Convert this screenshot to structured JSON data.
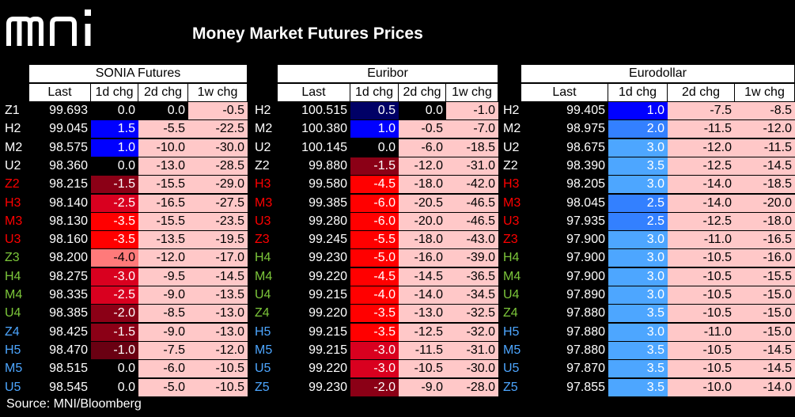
{
  "header": {
    "logo_text": "mni",
    "title": "Money Market Futures Prices"
  },
  "colors": {
    "header_bg": "#ffffff",
    "pink": "#ffc8c8",
    "brown_dark": "#8b0016",
    "red": "#ff0000",
    "blue": "#0000ff",
    "light_blue": "#4da6ff",
    "text_green": "#7cc63a",
    "text_red": "#ff0000",
    "text_blue": "#4da6ff"
  },
  "panels": [
    {
      "name": "SONIA Futures",
      "columns": [
        "Last",
        "1d chg",
        "2d chg",
        "1w chg"
      ],
      "rows": [
        {
          "contract": "Z1",
          "color": "white",
          "last": "99.693",
          "d1": "0.0",
          "d2": "0.0",
          "w1": "-0.5"
        },
        {
          "contract": "H2",
          "color": "white",
          "last": "99.045",
          "d1": "1.5",
          "d2": "-5.5",
          "w1": "-22.5"
        },
        {
          "contract": "M2",
          "color": "white",
          "last": "98.575",
          "d1": "1.0",
          "d2": "-10.0",
          "w1": "-30.0"
        },
        {
          "contract": "U2",
          "color": "white",
          "last": "98.360",
          "d1": "0.0",
          "d2": "-13.0",
          "w1": "-28.5"
        },
        {
          "contract": "Z2",
          "color": "red",
          "last": "98.215",
          "d1": "-1.5",
          "d2": "-15.5",
          "w1": "-29.0"
        },
        {
          "contract": "H3",
          "color": "red",
          "last": "98.140",
          "d1": "-2.5",
          "d2": "-16.5",
          "w1": "-27.5"
        },
        {
          "contract": "M3",
          "color": "red",
          "last": "98.130",
          "d1": "-3.5",
          "d2": "-15.5",
          "w1": "-23.5"
        },
        {
          "contract": "U3",
          "color": "red",
          "last": "98.160",
          "d1": "-3.5",
          "d2": "-13.5",
          "w1": "-19.5"
        },
        {
          "contract": "Z3",
          "color": "green",
          "last": "98.200",
          "d1": "-4.0",
          "d2": "-12.0",
          "w1": "-17.0"
        },
        {
          "contract": "H4",
          "color": "green",
          "last": "98.275",
          "d1": "-3.0",
          "d2": "-9.5",
          "w1": "-14.5"
        },
        {
          "contract": "M4",
          "color": "green",
          "last": "98.335",
          "d1": "-2.5",
          "d2": "-9.0",
          "w1": "-13.5"
        },
        {
          "contract": "U4",
          "color": "green",
          "last": "98.385",
          "d1": "-2.0",
          "d2": "-8.5",
          "w1": "-13.0"
        },
        {
          "contract": "Z4",
          "color": "blue",
          "last": "98.425",
          "d1": "-1.5",
          "d2": "-9.0",
          "w1": "-13.0"
        },
        {
          "contract": "H5",
          "color": "blue",
          "last": "98.470",
          "d1": "-1.0",
          "d2": "-7.5",
          "w1": "-12.0"
        },
        {
          "contract": "M5",
          "color": "blue",
          "last": "98.515",
          "d1": "0.0",
          "d2": "-6.0",
          "w1": "-10.5"
        },
        {
          "contract": "U5",
          "color": "blue",
          "last": "98.545",
          "d1": "0.0",
          "d2": "-5.0",
          "w1": "-10.5"
        }
      ]
    },
    {
      "name": "Euribor",
      "columns": [
        "Last",
        "1d chg",
        "2d chg",
        "1w chg"
      ],
      "rows": [
        {
          "contract": "H2",
          "color": "white",
          "last": "100.515",
          "d1": "0.5",
          "d2": "0.0",
          "w1": "-1.0"
        },
        {
          "contract": "M2",
          "color": "white",
          "last": "100.380",
          "d1": "1.0",
          "d2": "-0.5",
          "w1": "-7.0"
        },
        {
          "contract": "U2",
          "color": "white",
          "last": "100.145",
          "d1": "0.0",
          "d2": "-6.0",
          "w1": "-18.5"
        },
        {
          "contract": "Z2",
          "color": "white",
          "last": "99.880",
          "d1": "-1.5",
          "d2": "-12.0",
          "w1": "-31.0"
        },
        {
          "contract": "H3",
          "color": "red",
          "last": "99.580",
          "d1": "-4.5",
          "d2": "-18.0",
          "w1": "-42.0"
        },
        {
          "contract": "M3",
          "color": "red",
          "last": "99.385",
          "d1": "-6.0",
          "d2": "-20.5",
          "w1": "-46.5"
        },
        {
          "contract": "U3",
          "color": "red",
          "last": "99.280",
          "d1": "-6.0",
          "d2": "-20.0",
          "w1": "-46.5"
        },
        {
          "contract": "Z3",
          "color": "red",
          "last": "99.245",
          "d1": "-5.5",
          "d2": "-18.0",
          "w1": "-43.0"
        },
        {
          "contract": "H4",
          "color": "green",
          "last": "99.230",
          "d1": "-5.0",
          "d2": "-16.0",
          "w1": "-39.0"
        },
        {
          "contract": "M4",
          "color": "green",
          "last": "99.220",
          "d1": "-4.5",
          "d2": "-14.5",
          "w1": "-36.5"
        },
        {
          "contract": "U4",
          "color": "green",
          "last": "99.215",
          "d1": "-4.0",
          "d2": "-14.0",
          "w1": "-34.5"
        },
        {
          "contract": "Z4",
          "color": "green",
          "last": "99.220",
          "d1": "-3.5",
          "d2": "-13.0",
          "w1": "-32.5"
        },
        {
          "contract": "H5",
          "color": "blue",
          "last": "99.215",
          "d1": "-3.5",
          "d2": "-12.5",
          "w1": "-32.0"
        },
        {
          "contract": "M5",
          "color": "blue",
          "last": "99.215",
          "d1": "-3.0",
          "d2": "-11.5",
          "w1": "-31.0"
        },
        {
          "contract": "U5",
          "color": "blue",
          "last": "99.220",
          "d1": "-3.0",
          "d2": "-10.5",
          "w1": "-30.0"
        },
        {
          "contract": "Z5",
          "color": "blue",
          "last": "99.230",
          "d1": "-2.0",
          "d2": "-9.0",
          "w1": "-28.0"
        }
      ]
    },
    {
      "name": "Eurodollar",
      "columns": [
        "Last",
        "1d chg",
        "2d chg",
        "1w chg"
      ],
      "rows": [
        {
          "contract": "H2",
          "color": "white",
          "last": "99.405",
          "d1": "1.0",
          "d2": "-7.5",
          "w1": "-8.5"
        },
        {
          "contract": "M2",
          "color": "white",
          "last": "98.975",
          "d1": "2.0",
          "d2": "-11.5",
          "w1": "-12.0"
        },
        {
          "contract": "U2",
          "color": "white",
          "last": "98.675",
          "d1": "3.0",
          "d2": "-12.0",
          "w1": "-11.5"
        },
        {
          "contract": "Z2",
          "color": "white",
          "last": "98.390",
          "d1": "3.5",
          "d2": "-12.5",
          "w1": "-14.5"
        },
        {
          "contract": "H3",
          "color": "red",
          "last": "98.205",
          "d1": "3.0",
          "d2": "-14.0",
          "w1": "-18.5"
        },
        {
          "contract": "M3",
          "color": "red",
          "last": "98.045",
          "d1": "2.5",
          "d2": "-14.0",
          "w1": "-20.0"
        },
        {
          "contract": "U3",
          "color": "red",
          "last": "97.935",
          "d1": "2.5",
          "d2": "-12.5",
          "w1": "-18.0"
        },
        {
          "contract": "Z3",
          "color": "red",
          "last": "97.900",
          "d1": "3.0",
          "d2": "-11.0",
          "w1": "-16.5"
        },
        {
          "contract": "H4",
          "color": "green",
          "last": "97.900",
          "d1": "3.0",
          "d2": "-10.5",
          "w1": "-16.0"
        },
        {
          "contract": "M4",
          "color": "green",
          "last": "97.900",
          "d1": "3.0",
          "d2": "-10.5",
          "w1": "-15.5"
        },
        {
          "contract": "U4",
          "color": "green",
          "last": "97.890",
          "d1": "3.0",
          "d2": "-10.5",
          "w1": "-15.0"
        },
        {
          "contract": "Z4",
          "color": "green",
          "last": "97.880",
          "d1": "3.5",
          "d2": "-10.5",
          "w1": "-15.0"
        },
        {
          "contract": "H5",
          "color": "blue",
          "last": "97.880",
          "d1": "3.0",
          "d2": "-11.0",
          "w1": "-15.0"
        },
        {
          "contract": "M5",
          "color": "blue",
          "last": "97.880",
          "d1": "3.5",
          "d2": "-10.5",
          "w1": "-14.5"
        },
        {
          "contract": "U5",
          "color": "blue",
          "last": "97.870",
          "d1": "3.5",
          "d2": "-10.5",
          "w1": "-14.5"
        },
        {
          "contract": "Z5",
          "color": "blue",
          "last": "97.855",
          "d1": "3.5",
          "d2": "-10.0",
          "w1": "-14.0"
        }
      ]
    }
  ],
  "footer": {
    "source": "Source: MNI/Bloomberg"
  }
}
